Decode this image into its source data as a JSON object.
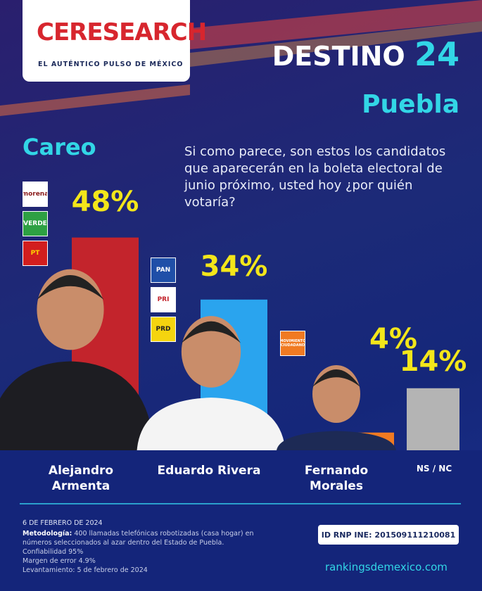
{
  "brand": {
    "logo": "CERESEARCH",
    "tagline": "EL AUTÉNTICO PULSO DE MÉXICO"
  },
  "header": {
    "title": "DESTINO",
    "number": "24",
    "state": "Puebla",
    "section": "Careo",
    "question": "Si como parece, son estos los candidatos que aparecerán en la boleta electoral de junio próximo, usted hoy ¿por quién votaría?"
  },
  "parties": [
    [
      "morena",
      "VERDE",
      "PT"
    ],
    [
      "PAN",
      "PRI",
      "PRD"
    ],
    [
      "MOVIMIENTO CIUDADANO"
    ]
  ],
  "chart_data": {
    "type": "bar",
    "categories": [
      "Alejandro Armenta",
      "Eduardo Rivera",
      "Fernando Morales",
      "NS / NC"
    ],
    "values": [
      48,
      34,
      4,
      14
    ],
    "value_labels": [
      "48%",
      "34%",
      "4%",
      "14%"
    ],
    "colors": [
      "#c3242c",
      "#2aa4ee",
      "#f07a22",
      "#b4b4b4"
    ],
    "ylim": [
      0,
      50
    ]
  },
  "footer": {
    "date": "6 DE FEBRERO DE 2024",
    "method_label": "Metodología:",
    "method": "400 llamadas telefónicas robotizadas (casa hogar) en números seleccionados al azar dentro del Estado de Puebla.",
    "lines": [
      "Confiabilidad 95%",
      "Margen de error 4.9%",
      "Levantamiento: 5 de febrero de 2024"
    ],
    "id": "ID RNP INE:  201509111210081",
    "site": "rankingsdemexico.com"
  }
}
